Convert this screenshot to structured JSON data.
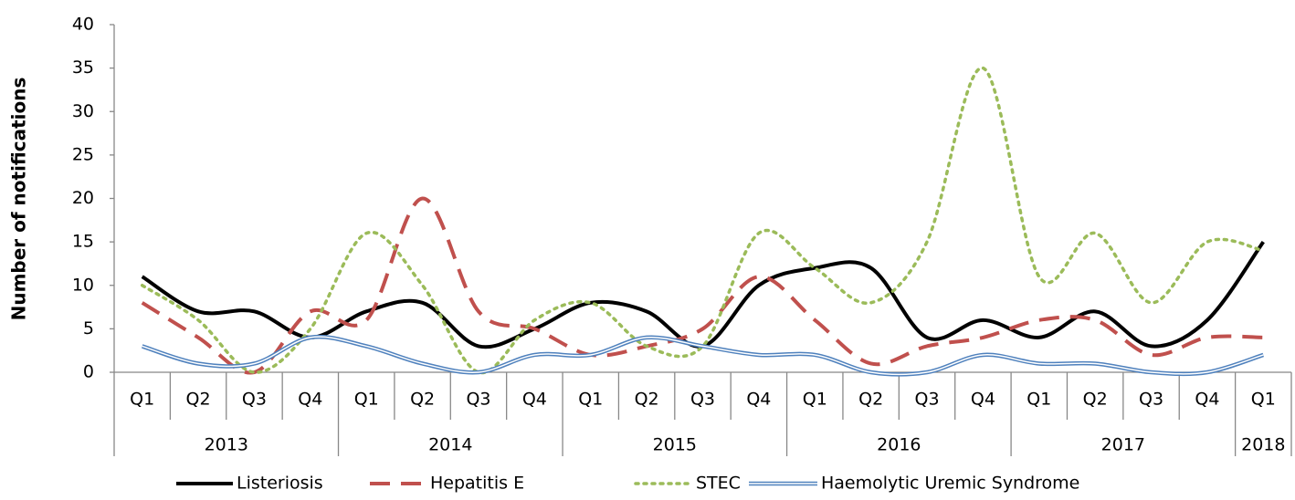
{
  "chart_data": {
    "type": "line",
    "y_label": "Number of notifications",
    "categories": [
      "Q1",
      "Q2",
      "Q3",
      "Q4",
      "Q1",
      "Q2",
      "Q3",
      "Q4",
      "Q1",
      "Q2",
      "Q3",
      "Q4",
      "Q1",
      "Q2",
      "Q3",
      "Q4",
      "Q1",
      "Q2",
      "Q3",
      "Q4",
      "Q1"
    ],
    "category_groups": [
      "2013",
      "2014",
      "2015",
      "2016",
      "2017",
      "2018"
    ],
    "ylim": [
      0,
      40
    ],
    "yticks": [
      0,
      5,
      10,
      15,
      20,
      25,
      30,
      35,
      40
    ],
    "grid": false,
    "legend": "bottom",
    "series": [
      {
        "name": "Listeriosis",
        "color": "#000000",
        "style": "solid",
        "values": [
          11,
          7,
          7,
          4,
          7,
          8,
          3,
          5,
          8,
          7,
          3,
          10,
          12,
          12,
          4,
          6,
          4,
          7,
          3,
          6,
          15
        ]
      },
      {
        "name": "Hepatitis E",
        "color": "#c0504d",
        "style": "dashed",
        "values": [
          8,
          4,
          0,
          7,
          6,
          20,
          7,
          5,
          2,
          3,
          5,
          11,
          6,
          1,
          3,
          4,
          6,
          6,
          2,
          4,
          4
        ]
      },
      {
        "name": "STEC",
        "color": "#9bbb59",
        "style": "dotted",
        "values": [
          10,
          6,
          0,
          5,
          16,
          10,
          0,
          6,
          8,
          3,
          3,
          16,
          12,
          8,
          15,
          35,
          11,
          16,
          8,
          15,
          14
        ]
      },
      {
        "name": "Haemolytic Uremic Syndrome",
        "color": "#4f81bd",
        "style": "double",
        "values": [
          3,
          1,
          1,
          4,
          3,
          1,
          0,
          2,
          2,
          4,
          3,
          2,
          2,
          0,
          0,
          2,
          1,
          1,
          0,
          0,
          2
        ]
      }
    ]
  }
}
